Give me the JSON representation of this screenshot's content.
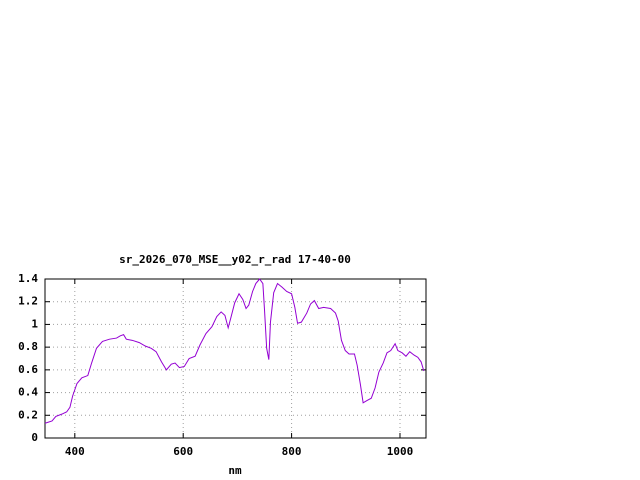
{
  "chart_data": {
    "type": "line",
    "title": "sr_2026_070_MSE__y02_r_rad 17-40-00",
    "x_label": "nm",
    "x": [
      345,
      358,
      365,
      376,
      385,
      391,
      396,
      404,
      413,
      424,
      431,
      440,
      451,
      464,
      477,
      484,
      490,
      495,
      506,
      519,
      530,
      541,
      550,
      560,
      569,
      578,
      585,
      593,
      602,
      611,
      622,
      631,
      642,
      653,
      662,
      670,
      677,
      683,
      688,
      695,
      703,
      710,
      716,
      721,
      728,
      734,
      741,
      747,
      750,
      754,
      758,
      761,
      767,
      774,
      782,
      791,
      800,
      806,
      811,
      818,
      828,
      835,
      842,
      850,
      859,
      872,
      881,
      886,
      892,
      899,
      906,
      916,
      921,
      927,
      932,
      939,
      947,
      954,
      961,
      969,
      976,
      983,
      991,
      996,
      1004,
      1011,
      1018,
      1026,
      1033,
      1039,
      1044
    ],
    "values": [
      0.13,
      0.15,
      0.19,
      0.21,
      0.23,
      0.27,
      0.37,
      0.48,
      0.53,
      0.55,
      0.66,
      0.79,
      0.85,
      0.87,
      0.88,
      0.9,
      0.91,
      0.87,
      0.86,
      0.84,
      0.81,
      0.79,
      0.76,
      0.67,
      0.6,
      0.65,
      0.66,
      0.62,
      0.63,
      0.7,
      0.72,
      0.82,
      0.92,
      0.98,
      1.07,
      1.11,
      1.08,
      0.97,
      1.06,
      1.19,
      1.27,
      1.22,
      1.14,
      1.17,
      1.29,
      1.36,
      1.4,
      1.36,
      1.13,
      0.79,
      0.69,
      1.02,
      1.28,
      1.36,
      1.33,
      1.29,
      1.27,
      1.15,
      1.01,
      1.02,
      1.1,
      1.18,
      1.21,
      1.14,
      1.15,
      1.14,
      1.1,
      1.03,
      0.86,
      0.77,
      0.74,
      0.74,
      0.64,
      0.47,
      0.31,
      0.33,
      0.35,
      0.44,
      0.58,
      0.66,
      0.75,
      0.77,
      0.83,
      0.77,
      0.75,
      0.72,
      0.76,
      0.73,
      0.71,
      0.67,
      0.59
    ],
    "color": "#9400d3",
    "xlim": [
      345,
      1048
    ],
    "xticks": [
      400,
      600,
      800,
      1000
    ],
    "ylim": [
      0,
      1.4
    ],
    "yticks": [
      0,
      0.2,
      0.4,
      0.6,
      0.8,
      1,
      1.2,
      1.4
    ],
    "grid": true
  }
}
